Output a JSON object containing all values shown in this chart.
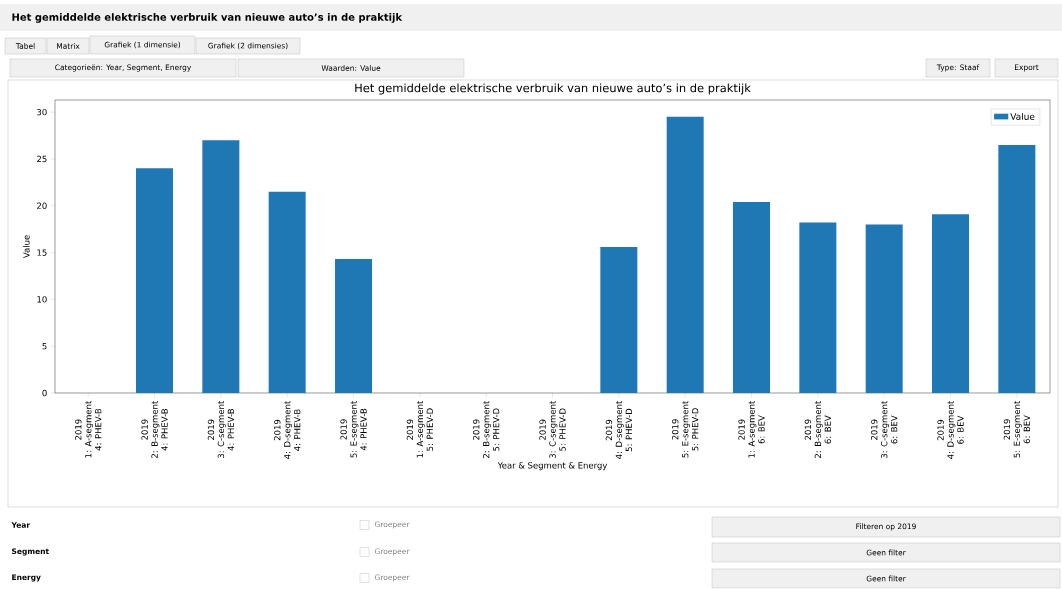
{
  "chart_data": {
    "type": "bar",
    "title": "Het gemiddelde elektrische verbruik van nieuwe auto’s in de praktijk",
    "xlabel": "Year & Segment & Energy",
    "ylabel": "Value",
    "categories": [
      "2019\n1: A-segment\n4: PHEV-B",
      "2019\n2: B-segment\n4: PHEV-B",
      "2019\n3: C-segment\n4: PHEV-B",
      "2019\n4: D-segment\n4: PHEV-B",
      "2019\n5: E-segment\n4: PHEV-B",
      "2019\n1: A-segment\n5: PHEV-D",
      "2019\n2: B-segment\n5: PHEV-D",
      "2019\n3: C-segment\n5: PHEV-D",
      "2019\n4: D-segment\n5: PHEV-D",
      "2019\n5: E-segment\n5: PHEV-D",
      "2019\n1: A-segment\n6: BEV",
      "2019\n2: B-segment\n6: BEV",
      "2019\n3: C-segment\n6: BEV",
      "2019\n4: D-segment\n6: BEV",
      "2019\n5: E-segment\n6: BEV"
    ],
    "series": [
      {
        "name": "Value",
        "color": "#1f77b4",
        "values": [
          null,
          24.0,
          27.0,
          21.5,
          14.3,
          null,
          null,
          null,
          15.6,
          29.5,
          20.4,
          18.2,
          18.0,
          19.1,
          26.5
        ]
      }
    ],
    "ylim": [
      0,
      31.3
    ],
    "yticks": [
      0,
      5,
      10,
      15,
      20,
      25,
      30
    ],
    "legend": "top right",
    "annotations": [
      "Het gemiddelde elektrische verbruik van nieuwe auto’s in de praktijk",
      "Tabel",
      "Matrix",
      "Grafiek (1 dimensie)",
      "Grafiek (2 dimensies)",
      "Categorieën: Year, Segment, Energy",
      "Waarden: Value",
      "Type: Staaf",
      "Export",
      "Year",
      "Groepeer",
      "Filteren op 2019",
      "Segment",
      "Groepeer",
      "Geen filter",
      "Energy",
      "Groepeer",
      "Geen filter"
    ]
  }
}
